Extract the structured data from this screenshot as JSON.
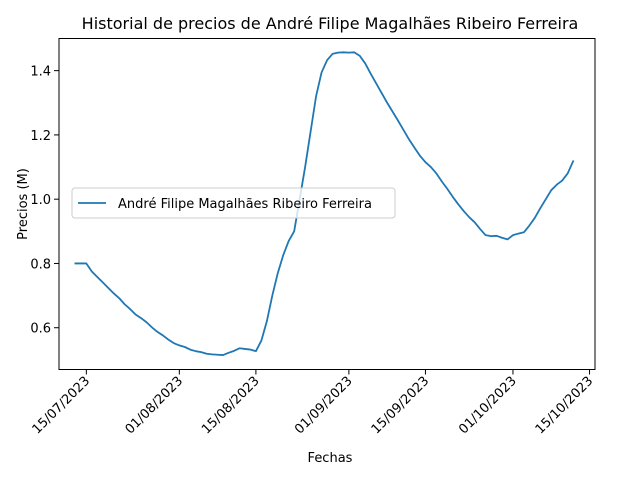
{
  "chart_data": {
    "type": "line",
    "title": "Historial de precios de André Filipe Magalhães Ribeiro Ferreira",
    "xlabel": "Fechas",
    "ylabel": "Precios (M)",
    "xlim": [
      "2023-07-10",
      "2023-10-16"
    ],
    "ylim": [
      0.47,
      1.5
    ],
    "xticks": [
      {
        "date": "2023-07-15",
        "label": "15/07/2023"
      },
      {
        "date": "2023-08-01",
        "label": "01/08/2023"
      },
      {
        "date": "2023-08-15",
        "label": "15/08/2023"
      },
      {
        "date": "2023-09-01",
        "label": "01/09/2023"
      },
      {
        "date": "2023-09-15",
        "label": "15/09/2023"
      },
      {
        "date": "2023-10-01",
        "label": "01/10/2023"
      },
      {
        "date": "2023-10-15",
        "label": "15/10/2023"
      }
    ],
    "yticks": [
      {
        "value": 0.6,
        "label": "0.6"
      },
      {
        "value": 0.8,
        "label": "0.8"
      },
      {
        "value": 1.0,
        "label": "1.0"
      },
      {
        "value": 1.2,
        "label": "1.2"
      },
      {
        "value": 1.4,
        "label": "1.4"
      }
    ],
    "grid": false,
    "legend_position": "center-left",
    "series": [
      {
        "name": "André Filipe Magalhães Ribeiro Ferreira",
        "color": "#1f77b4",
        "points": [
          [
            "2023-07-13",
            0.8
          ],
          [
            "2023-07-14",
            0.8
          ],
          [
            "2023-07-15",
            0.8
          ],
          [
            "2023-07-16",
            0.775
          ],
          [
            "2023-07-17",
            0.758
          ],
          [
            "2023-07-18",
            0.741
          ],
          [
            "2023-07-19",
            0.724
          ],
          [
            "2023-07-20",
            0.707
          ],
          [
            "2023-07-21",
            0.692
          ],
          [
            "2023-07-22",
            0.673
          ],
          [
            "2023-07-23",
            0.658
          ],
          [
            "2023-07-24",
            0.641
          ],
          [
            "2023-07-25",
            0.63
          ],
          [
            "2023-07-26",
            0.617
          ],
          [
            "2023-07-27",
            0.601
          ],
          [
            "2023-07-28",
            0.587
          ],
          [
            "2023-07-29",
            0.576
          ],
          [
            "2023-07-30",
            0.563
          ],
          [
            "2023-07-31",
            0.552
          ],
          [
            "2023-08-01",
            0.545
          ],
          [
            "2023-08-02",
            0.54
          ],
          [
            "2023-08-03",
            0.532
          ],
          [
            "2023-08-04",
            0.527
          ],
          [
            "2023-08-05",
            0.524
          ],
          [
            "2023-08-06",
            0.519
          ],
          [
            "2023-08-07",
            0.517
          ],
          [
            "2023-08-08",
            0.516
          ],
          [
            "2023-08-09",
            0.515
          ],
          [
            "2023-08-10",
            0.522
          ],
          [
            "2023-08-11",
            0.528
          ],
          [
            "2023-08-12",
            0.536
          ],
          [
            "2023-08-13",
            0.534
          ],
          [
            "2023-08-14",
            0.532
          ],
          [
            "2023-08-15",
            0.527
          ],
          [
            "2023-08-16",
            0.56
          ],
          [
            "2023-08-17",
            0.62
          ],
          [
            "2023-08-18",
            0.7
          ],
          [
            "2023-08-19",
            0.77
          ],
          [
            "2023-08-20",
            0.826
          ],
          [
            "2023-08-21",
            0.87
          ],
          [
            "2023-08-22",
            0.9
          ],
          [
            "2023-08-23",
            1.0
          ],
          [
            "2023-08-24",
            1.1
          ],
          [
            "2023-08-25",
            1.21
          ],
          [
            "2023-08-26",
            1.32
          ],
          [
            "2023-08-27",
            1.394
          ],
          [
            "2023-08-28",
            1.432
          ],
          [
            "2023-08-29",
            1.452
          ],
          [
            "2023-08-30",
            1.456
          ],
          [
            "2023-08-31",
            1.457
          ],
          [
            "2023-09-01",
            1.456
          ],
          [
            "2023-09-02",
            1.457
          ],
          [
            "2023-09-03",
            1.446
          ],
          [
            "2023-09-04",
            1.422
          ],
          [
            "2023-09-05",
            1.39
          ],
          [
            "2023-09-06",
            1.36
          ],
          [
            "2023-09-07",
            1.33
          ],
          [
            "2023-09-08",
            1.3
          ],
          [
            "2023-09-09",
            1.272
          ],
          [
            "2023-09-10",
            1.244
          ],
          [
            "2023-09-11",
            1.215
          ],
          [
            "2023-09-12",
            1.186
          ],
          [
            "2023-09-13",
            1.16
          ],
          [
            "2023-09-14",
            1.135
          ],
          [
            "2023-09-15",
            1.115
          ],
          [
            "2023-09-16",
            1.1
          ],
          [
            "2023-09-17",
            1.08
          ],
          [
            "2023-09-18",
            1.055
          ],
          [
            "2023-09-19",
            1.032
          ],
          [
            "2023-09-20",
            1.007
          ],
          [
            "2023-09-21",
            0.984
          ],
          [
            "2023-09-22",
            0.963
          ],
          [
            "2023-09-23",
            0.944
          ],
          [
            "2023-09-24",
            0.928
          ],
          [
            "2023-09-25",
            0.907
          ],
          [
            "2023-09-26",
            0.888
          ],
          [
            "2023-09-27",
            0.885
          ],
          [
            "2023-09-28",
            0.886
          ],
          [
            "2023-09-29",
            0.88
          ],
          [
            "2023-09-30",
            0.875
          ],
          [
            "2023-10-01",
            0.888
          ],
          [
            "2023-10-02",
            0.893
          ],
          [
            "2023-10-03",
            0.897
          ],
          [
            "2023-10-04",
            0.918
          ],
          [
            "2023-10-05",
            0.942
          ],
          [
            "2023-10-06",
            0.972
          ],
          [
            "2023-10-07",
            1.0
          ],
          [
            "2023-10-08",
            1.028
          ],
          [
            "2023-10-09",
            1.045
          ],
          [
            "2023-10-10",
            1.058
          ],
          [
            "2023-10-11",
            1.08
          ],
          [
            "2023-10-12",
            1.118
          ]
        ]
      }
    ]
  }
}
